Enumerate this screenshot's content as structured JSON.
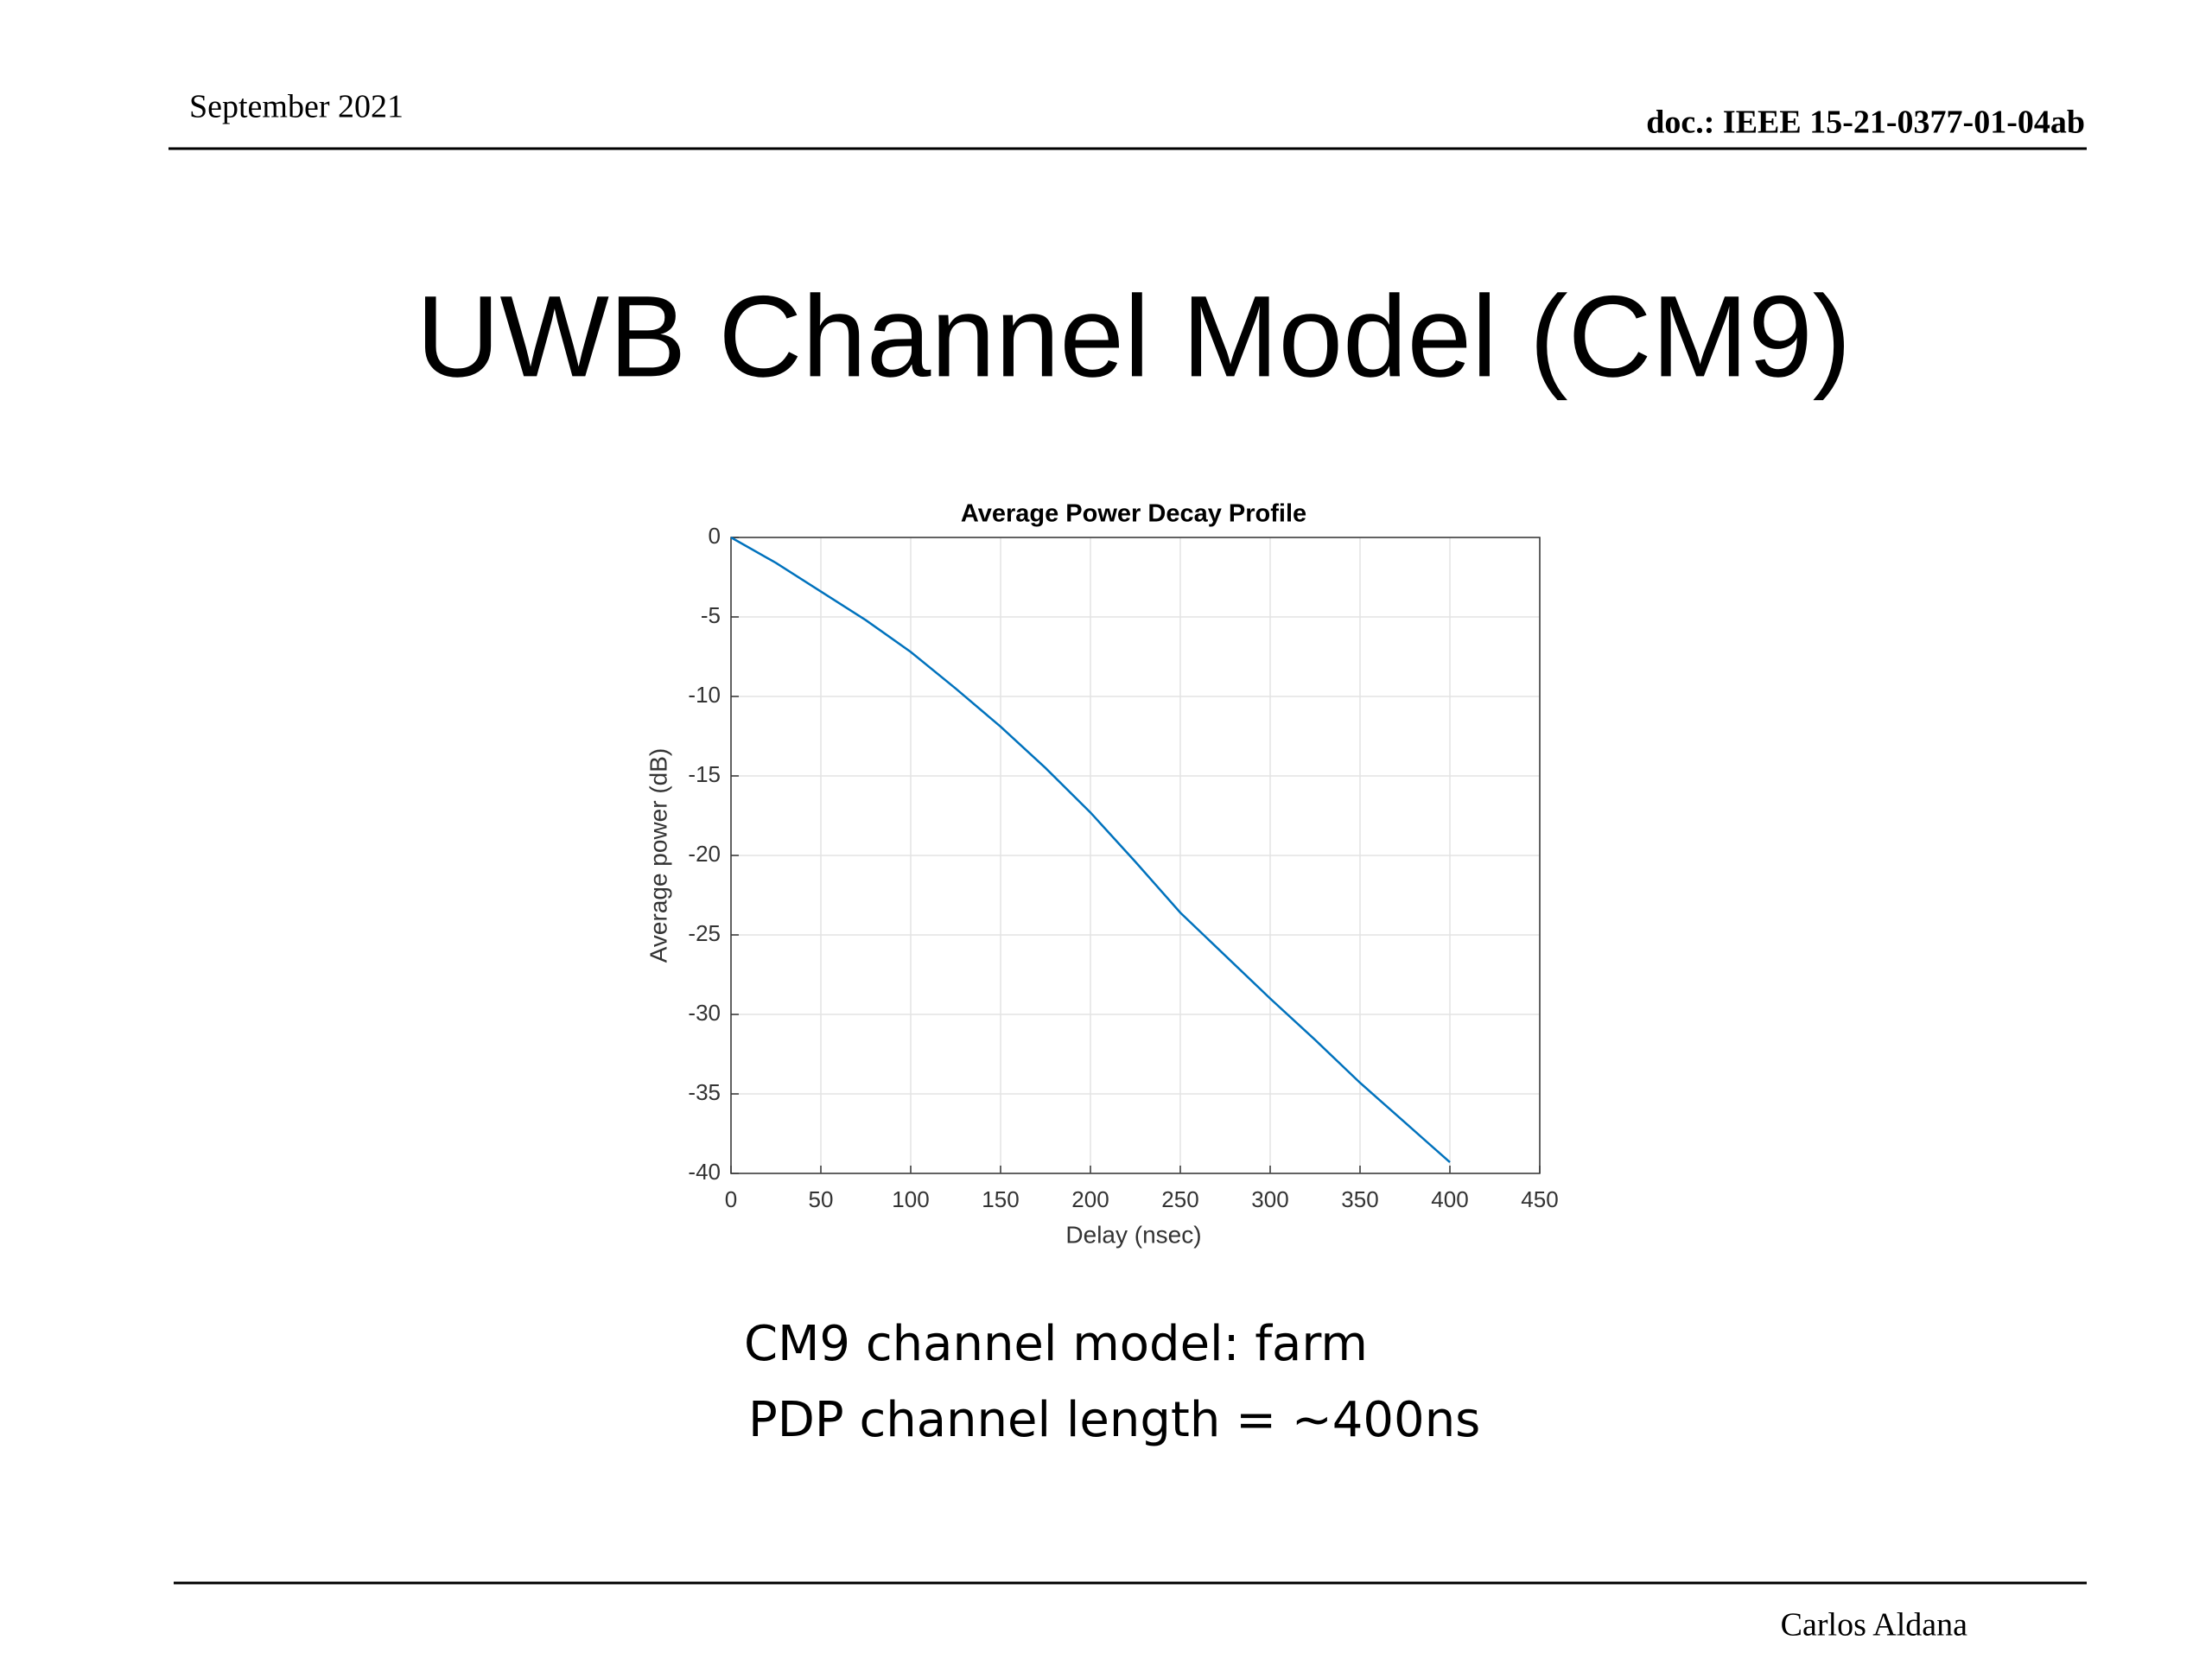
{
  "header": {
    "date": "September 2021",
    "doc": "doc.: IEEE 15-21-0377-01-04ab"
  },
  "title": "UWB Channel Model (CM9)",
  "chart_data": {
    "type": "line",
    "title": "Average Power Decay Profile",
    "x_label": "Delay (nsec)",
    "y_label": "Average power (dB)",
    "x": [
      0,
      25,
      50,
      75,
      100,
      125,
      150,
      175,
      200,
      225,
      250,
      275,
      300,
      325,
      350,
      375,
      400
    ],
    "series": [
      {
        "name": "PDP",
        "color": "#0072bd",
        "values": [
          0,
          -1.6,
          -3.4,
          -5.2,
          -7.2,
          -9.5,
          -11.9,
          -14.5,
          -17.3,
          -20.4,
          -23.6,
          -26.3,
          -29,
          -31.6,
          -34.3,
          -36.8,
          -39.3
        ]
      }
    ],
    "xlim": [
      0,
      450
    ],
    "xticks": [
      0,
      50,
      100,
      150,
      200,
      250,
      300,
      350,
      400,
      450
    ],
    "ylim": [
      -40,
      0
    ],
    "yticks": [
      0,
      -5,
      -10,
      -15,
      -20,
      -25,
      -30,
      -35,
      -40
    ],
    "grid": true
  },
  "body": [
    "CM9 channel model: farm",
    "PDP channel length = ~400ns"
  ],
  "footer": {
    "author": "Carlos Aldana"
  }
}
